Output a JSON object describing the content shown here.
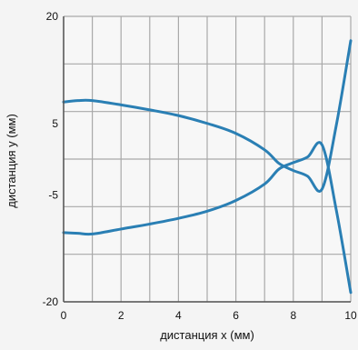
{
  "chart_data": {
    "type": "line",
    "title": "",
    "xlabel": "дистанция x (мм)",
    "ylabel": "дистанция y (мм)",
    "xlim": [
      0,
      10
    ],
    "ylim": [
      -20,
      20
    ],
    "x_ticks": [
      0,
      2,
      4,
      6,
      8,
      10
    ],
    "x_tick_labels": [
      "0",
      "2",
      "4",
      "6",
      "8",
      "10"
    ],
    "y_ticks": [
      -20,
      -5,
      5,
      20
    ],
    "y_tick_labels": [
      "-20",
      "-5",
      "5",
      "20"
    ],
    "grid": true,
    "legend": "none",
    "series": [
      {
        "color": "#2a7fb4",
        "x": [
          0,
          0.5,
          1,
          2,
          3,
          4,
          5,
          6,
          7,
          7.5,
          8,
          8.5,
          9,
          9.5,
          10
        ],
        "y": [
          8.0,
          8.2,
          8.2,
          7.6,
          6.9,
          6.1,
          5.0,
          3.6,
          1.3,
          -0.6,
          -1.6,
          -2.4,
          -4.2,
          4.8,
          16.6
        ]
      },
      {
        "color": "#2a7fb4",
        "x": [
          0,
          0.5,
          1,
          2,
          3,
          4,
          5,
          6,
          7,
          7.5,
          8,
          8.5,
          9,
          9.5,
          10
        ],
        "y": [
          -10.3,
          -10.4,
          -10.5,
          -9.8,
          -9.1,
          -8.3,
          -7.3,
          -5.8,
          -3.5,
          -1.4,
          -0.5,
          0.3,
          2.0,
          -7.2,
          -18.7
        ]
      }
    ]
  }
}
